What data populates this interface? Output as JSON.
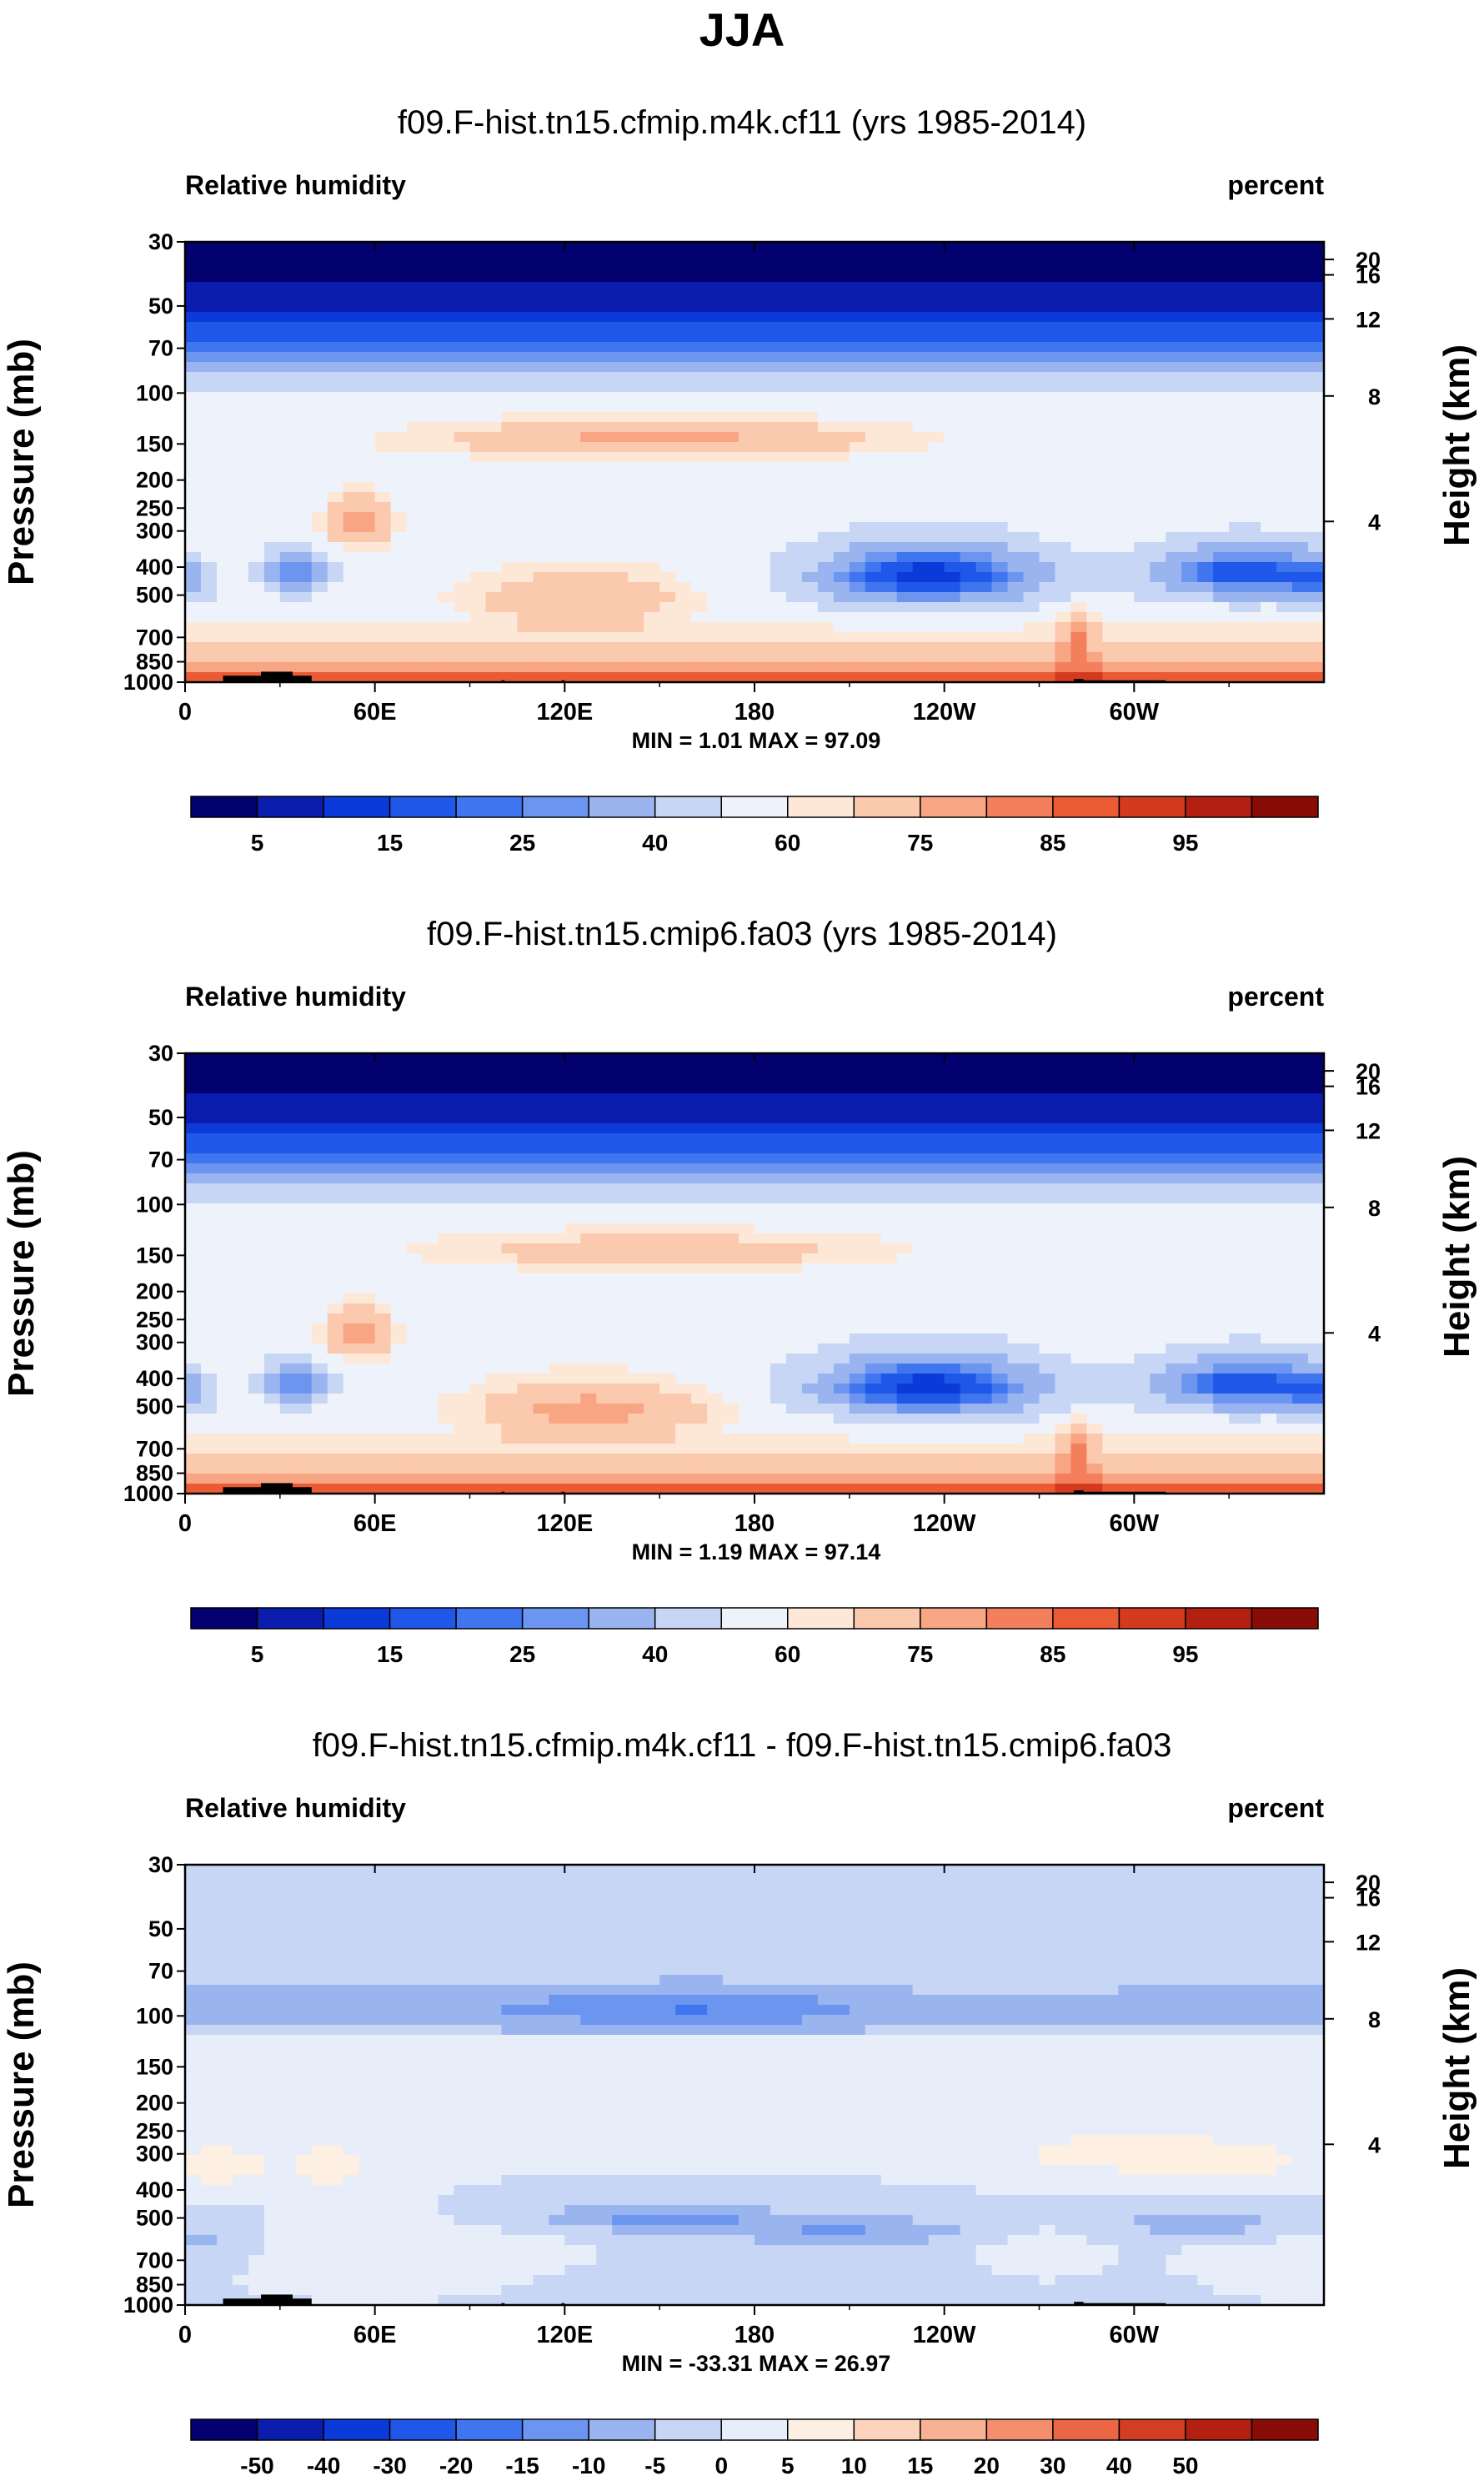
{
  "figure": {
    "season": "JJA"
  },
  "colormaps": {
    "abs": [
      "#03006f",
      "#0a1dae",
      "#0c3ad9",
      "#1f57e8",
      "#3f75ef",
      "#6c95f0",
      "#9ab4f0",
      "#c6d6f4",
      "#eef2fb",
      "#fde8d8",
      "#fbc9ad",
      "#f8a584",
      "#f37f5c",
      "#ea5a35",
      "#d33a1e",
      "#b31f11",
      "#8a0c07"
    ],
    "diff": [
      "#03006f",
      "#0a1dae",
      "#0c3ad9",
      "#1f57e8",
      "#3f75ef",
      "#6c95f0",
      "#9ab4f0",
      "#c6d6f4",
      "#e7eefa",
      "#fdf0e3",
      "#fbd4bb",
      "#f8b293",
      "#f38d6c",
      "#ea6644",
      "#d33d22",
      "#b31f11",
      "#8a0c07"
    ]
  },
  "chart_data": [
    {
      "type": "heatmap",
      "title": "f09.F-hist.tn15.cfmip.m4k.cf11 (yrs 1985-2014)",
      "left_label": "Relative humidity",
      "right_label": "percent",
      "ylabel": "Pressure (mb)",
      "ylabel_right": "Height (km)",
      "x_ticks": [
        "0",
        "60E",
        "120E",
        "180",
        "120W",
        "60W"
      ],
      "x_values": [
        0,
        60,
        120,
        180,
        240,
        300
      ],
      "xlim": [
        0,
        360
      ],
      "y_ticks": [
        "30",
        "50",
        "70",
        "100",
        "150",
        "200",
        "250",
        "300",
        "400",
        "500",
        "700",
        "850",
        "1000"
      ],
      "y_values": [
        30,
        50,
        70,
        100,
        150,
        200,
        250,
        300,
        400,
        500,
        700,
        850,
        1000
      ],
      "ylim": [
        1000,
        30
      ],
      "height_ticks": [
        "20",
        "16",
        "12",
        "8",
        "4"
      ],
      "height_values": [
        20,
        16,
        12,
        8,
        4
      ],
      "stats": "MIN =   1.01  MAX =  97.09",
      "min": 1.01,
      "max": 97.09,
      "colorbar_labels": [
        "5",
        "15",
        "25",
        "40",
        "60",
        "75",
        "85",
        "95"
      ],
      "colormap": "abs",
      "variant": "m4k"
    },
    {
      "type": "heatmap",
      "title": "f09.F-hist.tn15.cmip6.fa03 (yrs 1985-2014)",
      "left_label": "Relative humidity",
      "right_label": "percent",
      "ylabel": "Pressure (mb)",
      "ylabel_right": "Height (km)",
      "x_ticks": [
        "0",
        "60E",
        "120E",
        "180",
        "120W",
        "60W"
      ],
      "x_values": [
        0,
        60,
        120,
        180,
        240,
        300
      ],
      "xlim": [
        0,
        360
      ],
      "y_ticks": [
        "30",
        "50",
        "70",
        "100",
        "150",
        "200",
        "250",
        "300",
        "400",
        "500",
        "700",
        "850",
        "1000"
      ],
      "y_values": [
        30,
        50,
        70,
        100,
        150,
        200,
        250,
        300,
        400,
        500,
        700,
        850,
        1000
      ],
      "ylim": [
        1000,
        30
      ],
      "height_ticks": [
        "20",
        "16",
        "12",
        "8",
        "4"
      ],
      "height_values": [
        20,
        16,
        12,
        8,
        4
      ],
      "stats": "MIN =   1.19  MAX =  97.14",
      "min": 1.19,
      "max": 97.14,
      "colorbar_labels": [
        "5",
        "15",
        "25",
        "40",
        "60",
        "75",
        "85",
        "95"
      ],
      "colormap": "abs",
      "variant": "ctl"
    },
    {
      "type": "heatmap",
      "title": "f09.F-hist.tn15.cfmip.m4k.cf11 - f09.F-hist.tn15.cmip6.fa03",
      "left_label": "Relative humidity",
      "right_label": "percent",
      "ylabel": "Pressure (mb)",
      "ylabel_right": "Height (km)",
      "x_ticks": [
        "0",
        "60E",
        "120E",
        "180",
        "120W",
        "60W"
      ],
      "x_values": [
        0,
        60,
        120,
        180,
        240,
        300
      ],
      "xlim": [
        0,
        360
      ],
      "y_ticks": [
        "30",
        "50",
        "70",
        "100",
        "150",
        "200",
        "250",
        "300",
        "400",
        "500",
        "700",
        "850",
        "1000"
      ],
      "y_values": [
        30,
        50,
        70,
        100,
        150,
        200,
        250,
        300,
        400,
        500,
        700,
        850,
        1000
      ],
      "ylim": [
        1000,
        30
      ],
      "height_ticks": [
        "20",
        "16",
        "12",
        "8",
        "4"
      ],
      "height_values": [
        20,
        16,
        12,
        8,
        4
      ],
      "stats": "MIN = -33.31  MAX =  26.97",
      "min": -33.31,
      "max": 26.97,
      "colorbar_labels": [
        "-50",
        "-40",
        "-30",
        "-20",
        "-15",
        "-10",
        "-5",
        "0",
        "5",
        "10",
        "15",
        "20",
        "30",
        "40",
        "50"
      ],
      "colormap": "diff",
      "variant": "diff"
    }
  ]
}
